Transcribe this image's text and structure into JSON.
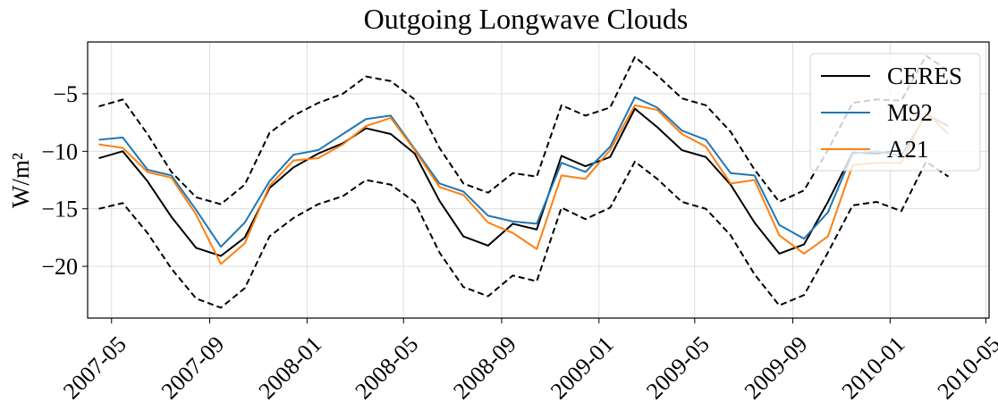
{
  "chart_data": {
    "type": "line",
    "title": "Outgoing Longwave Clouds",
    "xlabel": "",
    "ylabel": "W/m²",
    "ylim": [
      -24.5,
      -0.5
    ],
    "yticks": [
      -5,
      -10,
      -15,
      -20
    ],
    "ytick_labels": [
      "−5",
      "−10",
      "−15",
      "−20"
    ],
    "xlim": [
      "2007-04-01",
      "2010-05-05"
    ],
    "xticks": [
      "2007-05-01",
      "2007-09-01",
      "2008-01-01",
      "2008-05-01",
      "2008-09-01",
      "2009-01-01",
      "2009-05-01",
      "2009-09-01",
      "2010-01-01",
      "2010-05-01"
    ],
    "xtick_labels": [
      "2007-05",
      "2007-09",
      "2008-01",
      "2008-05",
      "2008-09",
      "2009-01",
      "2009-05",
      "2009-09",
      "2010-01",
      "2010-05"
    ],
    "grid": true,
    "legend_position": "top-right",
    "x": [
      "2007-04-15",
      "2007-05-15",
      "2007-06-15",
      "2007-07-15",
      "2007-08-15",
      "2007-09-15",
      "2007-10-15",
      "2007-11-15",
      "2007-12-15",
      "2008-01-15",
      "2008-02-15",
      "2008-03-15",
      "2008-04-15",
      "2008-05-15",
      "2008-06-15",
      "2008-07-15",
      "2008-08-15",
      "2008-09-15",
      "2008-10-15",
      "2008-11-15",
      "2008-12-15",
      "2009-01-15",
      "2009-02-15",
      "2009-03-15",
      "2009-04-15",
      "2009-05-15",
      "2009-06-15",
      "2009-07-15",
      "2009-08-15",
      "2009-09-15",
      "2009-10-15",
      "2009-11-15",
      "2009-12-15",
      "2010-01-15",
      "2010-02-15",
      "2010-03-15"
    ],
    "series": [
      {
        "name": "CERES",
        "color": "#000000",
        "style": "solid",
        "values": [
          -10.6,
          -10.0,
          -12.6,
          -15.7,
          -18.4,
          -19.1,
          -17.5,
          -13.2,
          -11.4,
          -10.2,
          -9.3,
          -8.0,
          -8.5,
          -10.2,
          -14.3,
          -17.4,
          -18.2,
          -16.3,
          -16.8,
          -10.4,
          -11.3,
          -10.5,
          -6.3,
          -7.9,
          -9.9,
          -10.5,
          -12.9,
          -16.2,
          -18.9,
          -18.1,
          -14.4,
          -10.1,
          -10.2,
          -9.9,
          null,
          null
        ]
      },
      {
        "name": "M92",
        "color": "#1f77b4",
        "style": "solid",
        "values": [
          -9.0,
          -8.8,
          -11.6,
          -12.1,
          -15.1,
          -18.3,
          -16.2,
          -12.6,
          -10.3,
          -9.9,
          -8.5,
          -7.2,
          -6.9,
          -9.8,
          -12.8,
          -13.5,
          -15.6,
          -16.1,
          -16.3,
          -11.0,
          -11.8,
          -9.6,
          -5.3,
          -6.2,
          -8.2,
          -9.0,
          -11.9,
          -12.1,
          -16.4,
          -17.6,
          -15.3,
          -10.2,
          -10.0,
          -10.4,
          -6.8,
          -7.8
        ]
      },
      {
        "name": "A21",
        "color": "#ff7f0e",
        "style": "solid",
        "values": [
          -9.4,
          -9.7,
          -11.8,
          -12.3,
          -15.5,
          -19.8,
          -18.0,
          -13.0,
          -10.8,
          -10.6,
          -9.4,
          -7.8,
          -7.1,
          -9.9,
          -13.1,
          -13.8,
          -16.2,
          -17.1,
          -18.5,
          -12.1,
          -12.4,
          -9.9,
          -6.0,
          -6.4,
          -8.5,
          -9.6,
          -12.8,
          -12.5,
          -17.3,
          -18.9,
          -17.4,
          -11.2,
          -11.0,
          -11.0,
          -6.6,
          -8.5
        ]
      },
      {
        "color": "#000000",
        "style": "dashed",
        "values": [
          -6.1,
          -5.5,
          -8.5,
          -11.8,
          -14.0,
          -14.6,
          -12.9,
          -8.4,
          -6.9,
          -5.8,
          -5.0,
          -3.5,
          -3.9,
          -5.5,
          -9.7,
          -12.8,
          -13.6,
          -11.9,
          -12.2,
          -6.0,
          -6.9,
          -6.2,
          -1.8,
          -3.4,
          -5.4,
          -6.0,
          -8.3,
          -11.6,
          -14.4,
          -13.4,
          -9.9,
          -5.8,
          -5.5,
          -5.6,
          -1.7,
          -3.0
        ]
      },
      {
        "color": "#000000",
        "style": "dashed",
        "values": [
          -15.0,
          -14.5,
          -17.1,
          -20.2,
          -22.8,
          -23.6,
          -21.9,
          -17.4,
          -15.8,
          -14.6,
          -13.9,
          -12.5,
          -12.9,
          -14.4,
          -18.8,
          -21.8,
          -22.6,
          -20.8,
          -21.3,
          -14.9,
          -15.9,
          -14.9,
          -10.9,
          -12.4,
          -14.4,
          -15.0,
          -17.3,
          -20.7,
          -23.4,
          -22.5,
          -18.8,
          -14.7,
          -14.4,
          -15.2,
          -10.9,
          -12.2
        ]
      }
    ]
  }
}
